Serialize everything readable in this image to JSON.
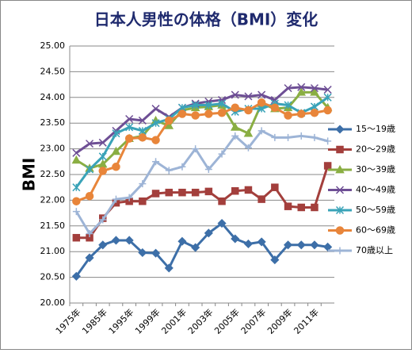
{
  "chart_data": {
    "type": "line",
    "title": "日本人男性の体格（BMI）変化",
    "y_label": "BMI",
    "categories": [
      "1975年",
      null,
      "1985年",
      null,
      "1995年",
      null,
      "1999年",
      null,
      "2001年",
      null,
      "2003年",
      null,
      "2005年",
      null,
      "2007年",
      null,
      "2009年",
      null,
      "2011年",
      null
    ],
    "ylim": [
      20,
      25
    ],
    "yticks": [
      {
        "value": 20,
        "label": "20.00"
      },
      {
        "value": 20.5,
        "label": "20.50"
      },
      {
        "value": 21,
        "label": "21.00"
      },
      {
        "value": 21.5,
        "label": "21.50"
      },
      {
        "value": 22,
        "label": "22.00"
      },
      {
        "value": 22.5,
        "label": "22.50"
      },
      {
        "value": 23,
        "label": "23.00"
      },
      {
        "value": 23.5,
        "label": "23.50"
      },
      {
        "value": 24,
        "label": "24.00"
      },
      {
        "value": 24.5,
        "label": "24.50"
      },
      {
        "value": 25,
        "label": "25.00"
      }
    ],
    "grid": true,
    "legend": "right",
    "series": [
      {
        "name": "15～19歳",
        "color": "#3d6fa8",
        "marker": "diamond",
        "values": [
          20.52,
          20.88,
          21.13,
          21.22,
          21.22,
          20.98,
          20.97,
          20.68,
          21.2,
          21.08,
          21.36,
          21.55,
          21.25,
          21.15,
          21.19,
          20.84,
          21.13,
          21.13,
          21.13,
          21.09
        ]
      },
      {
        "name": "20～29歳",
        "color": "#a33f3c",
        "marker": "square",
        "values": [
          21.27,
          21.27,
          21.65,
          21.95,
          21.98,
          21.98,
          22.13,
          22.15,
          22.15,
          22.15,
          22.17,
          21.98,
          22.18,
          22.2,
          22.02,
          22.25,
          21.88,
          21.86,
          21.86,
          22.67
        ]
      },
      {
        "name": "30～39歳",
        "color": "#8aae43",
        "marker": "triangle",
        "values": [
          22.78,
          22.62,
          22.7,
          22.95,
          23.2,
          23.25,
          23.55,
          23.45,
          23.75,
          23.8,
          23.82,
          23.85,
          23.42,
          23.3,
          23.88,
          23.78,
          23.8,
          24.1,
          24.1,
          23.8
        ]
      },
      {
        "name": "40～49歳",
        "color": "#6e4f95",
        "marker": "x",
        "values": [
          22.92,
          23.1,
          23.12,
          23.35,
          23.58,
          23.55,
          23.78,
          23.62,
          23.8,
          23.88,
          23.92,
          23.95,
          24.05,
          24.02,
          24.05,
          23.95,
          24.18,
          24.2,
          24.18,
          24.15
        ]
      },
      {
        "name": "50～59歳",
        "color": "#3aa3b8",
        "marker": "star",
        "values": [
          22.25,
          22.6,
          22.85,
          23.3,
          23.42,
          23.35,
          23.5,
          23.58,
          23.8,
          23.85,
          23.85,
          23.88,
          23.72,
          23.78,
          23.78,
          23.88,
          23.85,
          23.7,
          23.82,
          24.0
        ]
      },
      {
        "name": "60～69歳",
        "color": "#e8853a",
        "marker": "circle",
        "values": [
          21.98,
          22.08,
          22.57,
          22.65,
          23.2,
          23.22,
          23.17,
          23.55,
          23.68,
          23.65,
          23.68,
          23.7,
          23.8,
          23.75,
          23.9,
          23.8,
          23.65,
          23.68,
          23.7,
          23.75
        ]
      },
      {
        "name": "70歳以上",
        "color": "#9db4d6",
        "marker": "plus",
        "values": [
          21.78,
          21.35,
          21.62,
          22.02,
          22.05,
          22.32,
          22.75,
          22.58,
          22.65,
          23.0,
          22.6,
          22.9,
          23.25,
          23.02,
          23.35,
          23.22,
          23.22,
          23.25,
          23.22,
          23.15
        ]
      }
    ]
  }
}
